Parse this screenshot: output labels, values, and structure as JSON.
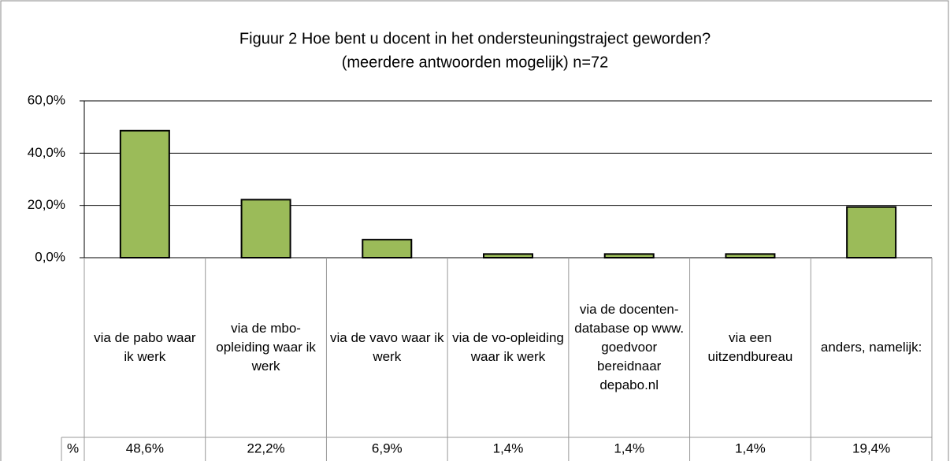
{
  "chart_data": {
    "type": "bar",
    "title": "Figuur 2 Hoe bent u docent in het ondersteuningstraject geworden?",
    "subtitle": "(meerdere antwoorden mogelijk) n=72",
    "categories": [
      "via de pabo waar ik werk",
      "via de mbo-opleiding waar ik werk",
      "via de vavo waar ik werk",
      "via de vo-opleiding waar ik werk",
      "via de docenten-database op www. goedvoor bereidnaar depabo.nl",
      "via een uitzendbureau",
      "anders, namelijk:"
    ],
    "values": [
      48.6,
      22.2,
      6.9,
      1.4,
      1.4,
      1.4,
      19.4
    ],
    "value_labels": [
      "48,6%",
      "22,2%",
      "6,9%",
      "1,4%",
      "1,4%",
      "1,4%",
      "19,4%"
    ],
    "table_row_label": "%",
    "color": "#9bbb59",
    "ylim": [
      0,
      60
    ],
    "yticks": [
      {
        "value": 0,
        "label": "0,0%"
      },
      {
        "value": 20,
        "label": "20,0%"
      },
      {
        "value": 40,
        "label": "40,0%"
      },
      {
        "value": 60,
        "label": "60,0%"
      }
    ],
    "grid": true
  }
}
